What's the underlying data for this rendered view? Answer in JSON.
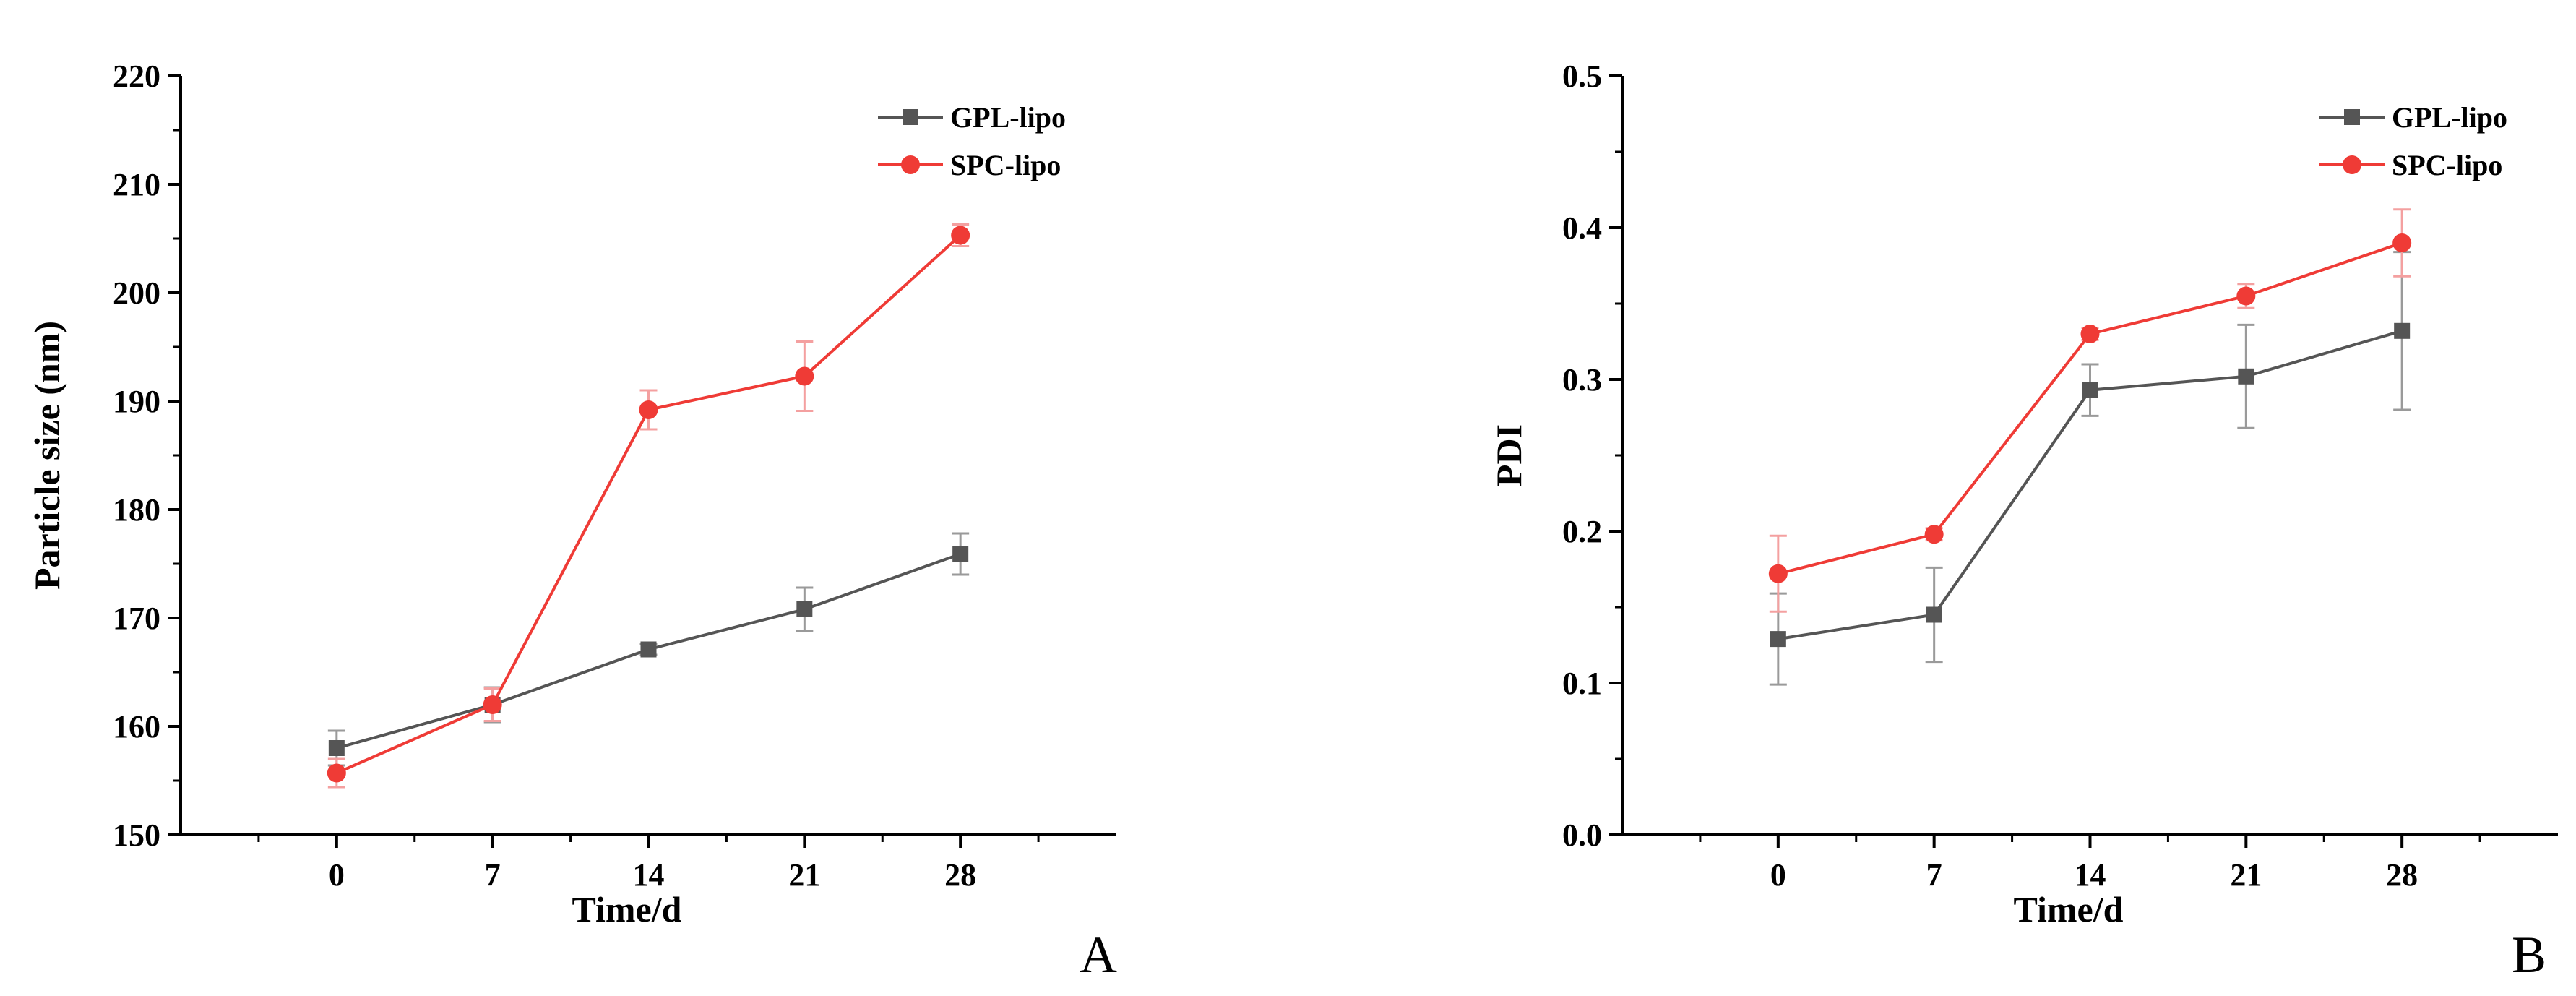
{
  "colors": {
    "gpl": "#555555",
    "spc": "#ef3b36",
    "gpl_error": "#9a9a9a",
    "spc_error": "#f4a0a0",
    "axis": "#000000"
  },
  "chart_data": [
    {
      "type": "line",
      "panel_label": "A",
      "title": "",
      "xlabel": "Time/d",
      "ylabel": "Particle size (nm)",
      "x": [
        0,
        7,
        14,
        21,
        28
      ],
      "xlim": [
        -7,
        35
      ],
      "xticks": [
        0,
        7,
        14,
        21,
        28
      ],
      "ylim": [
        150,
        220
      ],
      "yticks": [
        150,
        160,
        170,
        180,
        190,
        200,
        210,
        220
      ],
      "legend_position": "top-right",
      "series": [
        {
          "name": "GPL-lipo",
          "marker": "square",
          "color": "#555555",
          "values": [
            158.0,
            162.0,
            167.1,
            170.8,
            175.9
          ],
          "errors": [
            1.6,
            1.6,
            0.5,
            2.0,
            1.9
          ]
        },
        {
          "name": "SPC-lipo",
          "marker": "circle",
          "color": "#ef3b36",
          "values": [
            155.7,
            162.0,
            189.2,
            192.3,
            205.3
          ],
          "errors": [
            1.3,
            1.5,
            1.8,
            3.2,
            1.0
          ]
        }
      ]
    },
    {
      "type": "line",
      "panel_label": "B",
      "title": "",
      "xlabel": "Time/d",
      "ylabel": "PDI",
      "x": [
        0,
        7,
        14,
        21,
        28
      ],
      "xlim": [
        -7,
        35
      ],
      "xticks": [
        0,
        7,
        14,
        21,
        28
      ],
      "ylim": [
        0.0,
        0.5
      ],
      "yticks": [
        0.0,
        0.1,
        0.2,
        0.3,
        0.4,
        0.5
      ],
      "legend_position": "top-right",
      "series": [
        {
          "name": "GPL-lipo",
          "marker": "square",
          "color": "#555555",
          "values": [
            0.129,
            0.145,
            0.293,
            0.302,
            0.332
          ],
          "errors": [
            0.03,
            0.031,
            0.017,
            0.034,
            0.052
          ]
        },
        {
          "name": "SPC-lipo",
          "marker": "circle",
          "color": "#ef3b36",
          "values": [
            0.172,
            0.198,
            0.33,
            0.355,
            0.39
          ],
          "errors": [
            0.025,
            0.004,
            0.004,
            0.008,
            0.022
          ]
        }
      ]
    }
  ]
}
